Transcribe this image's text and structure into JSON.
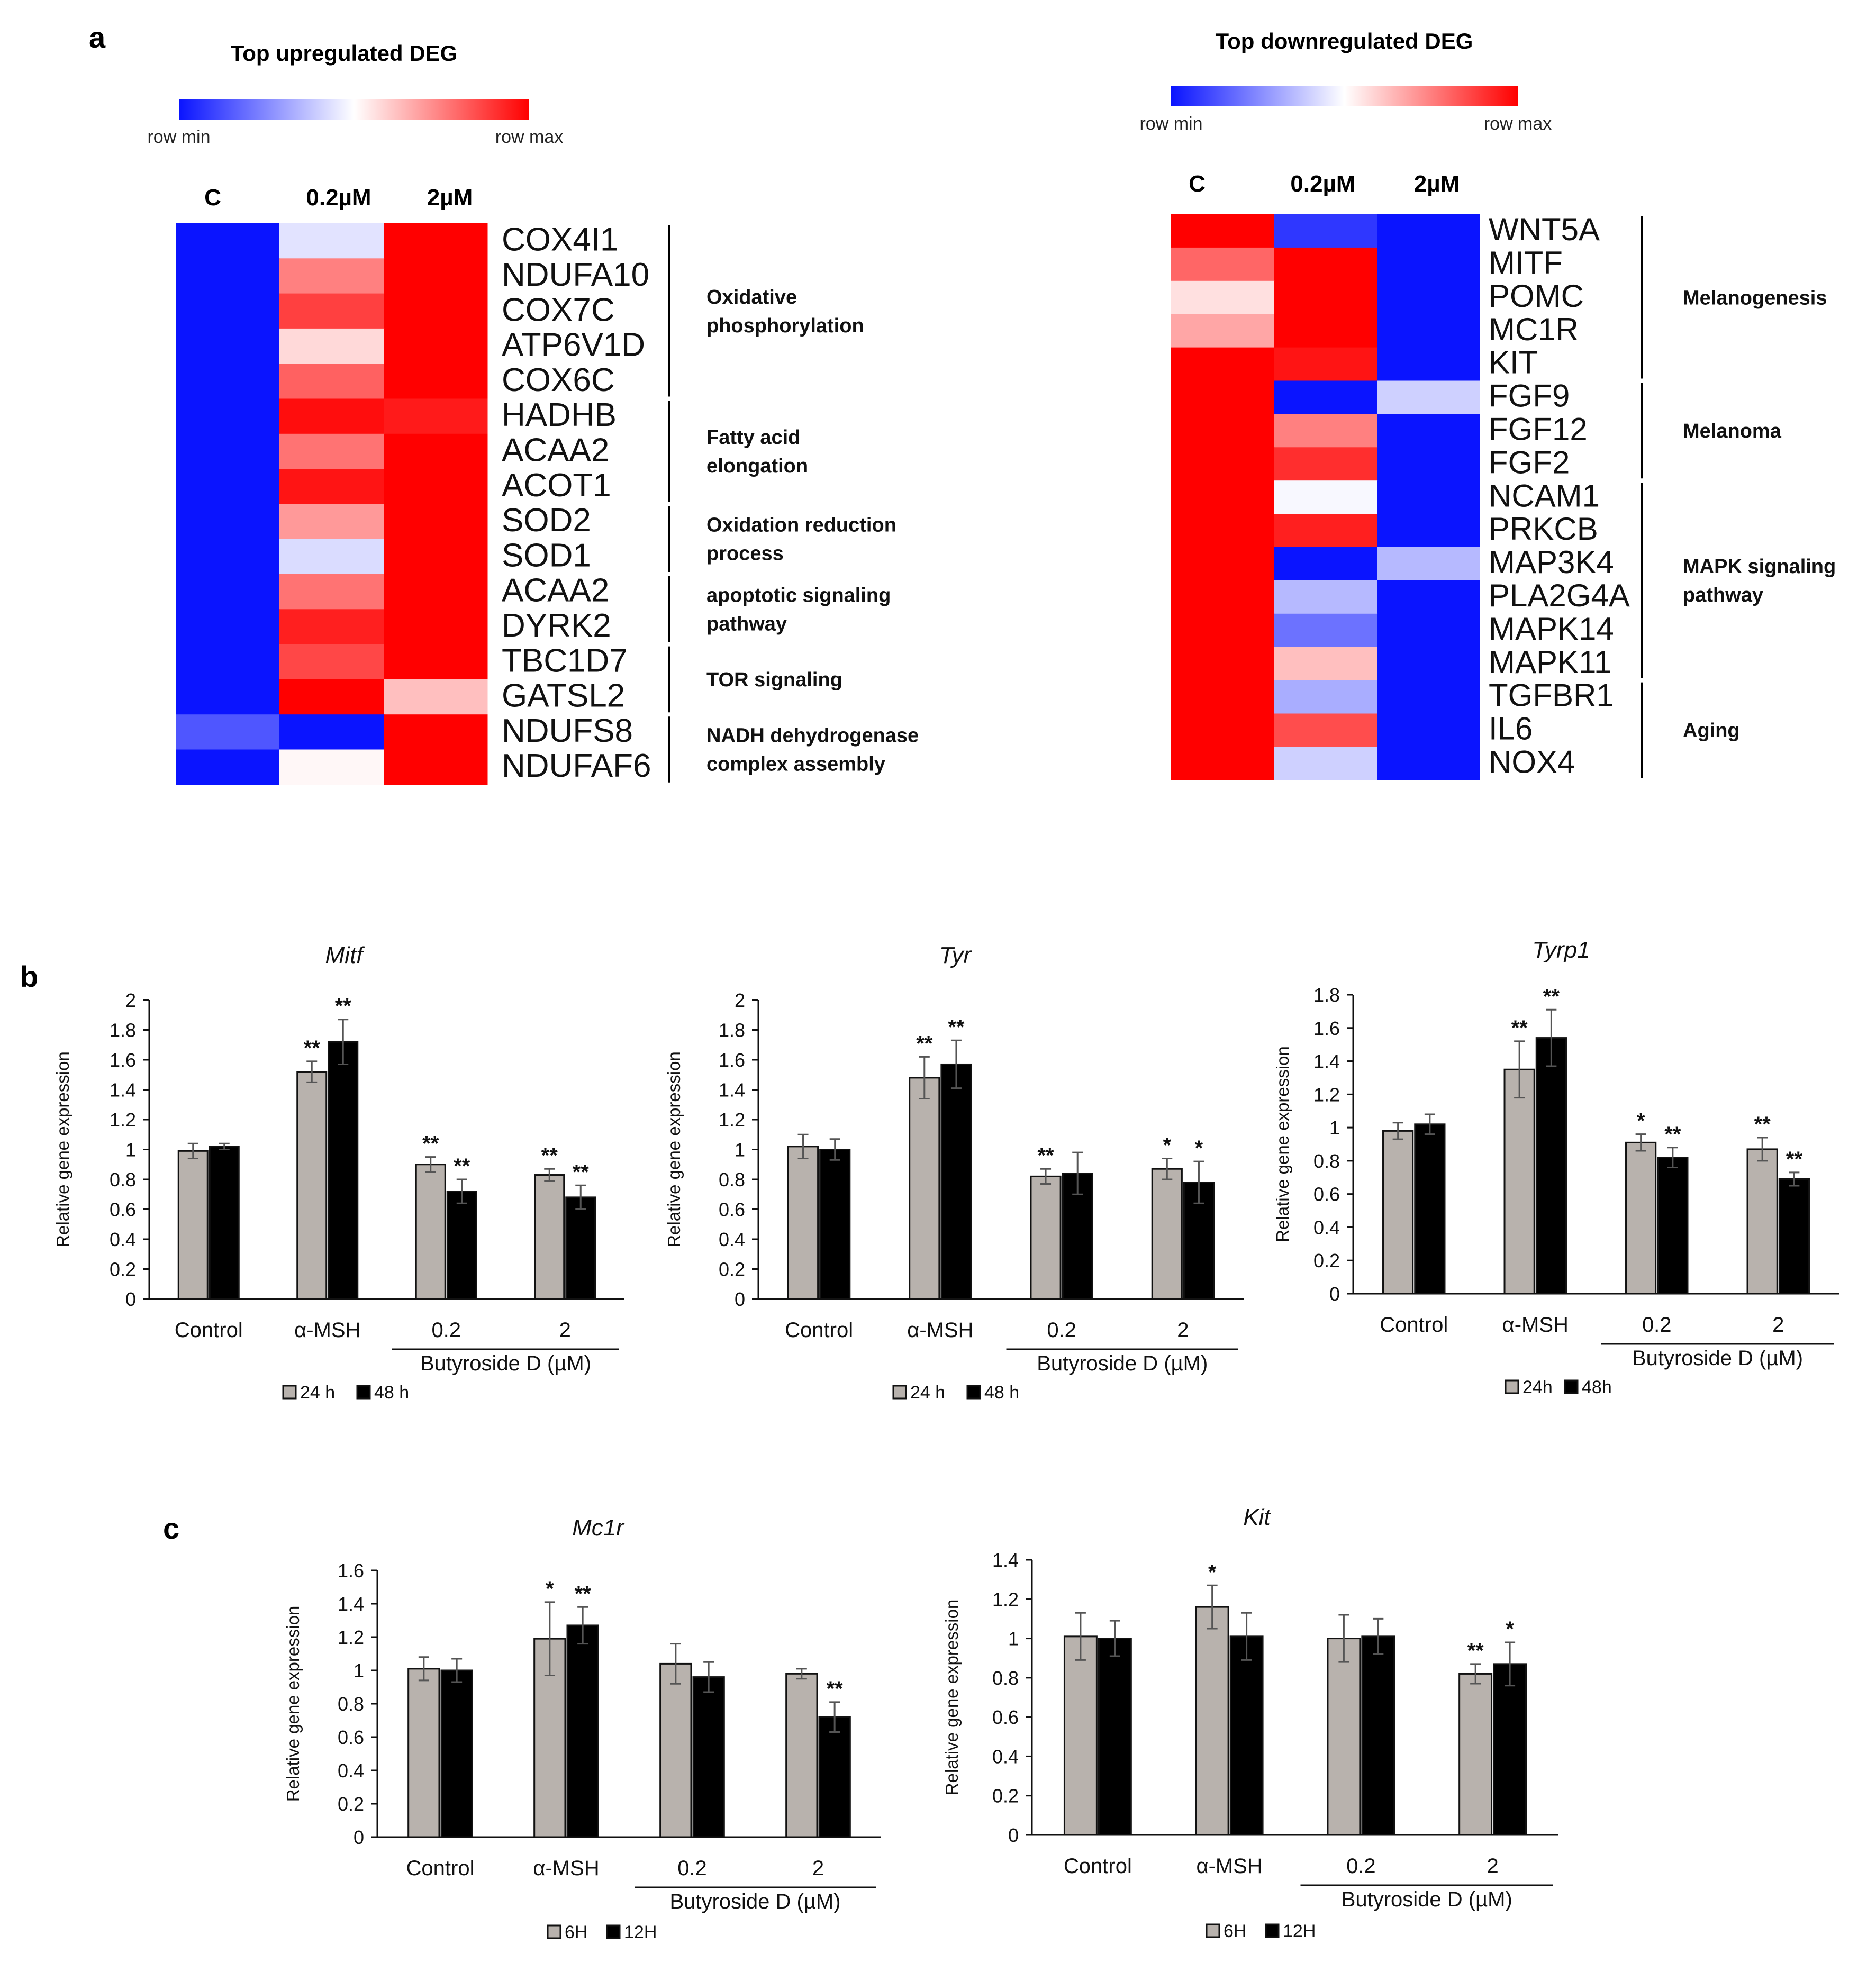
{
  "panel_labels": {
    "a": "a",
    "b": "b",
    "c": "c"
  },
  "colors": {
    "low": "#0a14ff",
    "mid": "#ffffff",
    "high": "#ff0000",
    "bar_light": "#b8b2ad",
    "bar_dark": "#000000"
  },
  "heatmaps": [
    {
      "title": "Top upregulated DEG",
      "scale_min": "row min",
      "scale_max": "row max",
      "columns": [
        "C",
        "0.2µM",
        "2µM"
      ],
      "genes": [
        "COX4I1",
        "NDUFA10",
        "COX7C",
        "ATP6V1D",
        "COX6C",
        "HADHB",
        "ACAA2",
        "ACOT1",
        "SOD2",
        "SOD1",
        "ACAA2",
        "DYRK2",
        "TBC1D7",
        "GATSL2",
        "NDUFS8",
        "NDUFAF6"
      ],
      "values": [
        [
          -1,
          -0.12,
          1
        ],
        [
          -1,
          0.5,
          1
        ],
        [
          -1,
          0.75,
          1
        ],
        [
          -1,
          0.15,
          1
        ],
        [
          -1,
          0.62,
          1
        ],
        [
          -1,
          0.95,
          0.9
        ],
        [
          -1,
          0.55,
          1
        ],
        [
          -1,
          0.92,
          1
        ],
        [
          -1,
          0.4,
          1
        ],
        [
          -1,
          -0.15,
          1
        ],
        [
          -1,
          0.55,
          1
        ],
        [
          -1,
          0.88,
          1
        ],
        [
          -1,
          0.72,
          1
        ],
        [
          -1,
          1,
          0.25
        ],
        [
          -0.72,
          -1,
          1
        ],
        [
          -1,
          0.03,
          1
        ]
      ],
      "groups": [
        {
          "lines": [
            "Oxidative",
            "phosphorylation"
          ],
          "start": 0,
          "end": 4
        },
        {
          "lines": [
            "Fatty acid",
            "elongation"
          ],
          "start": 5,
          "end": 7
        },
        {
          "lines": [
            "Oxidation reduction",
            "process"
          ],
          "start": 8,
          "end": 9
        },
        {
          "lines": [
            "apoptotic signaling",
            "pathway"
          ],
          "start": 10,
          "end": 11
        },
        {
          "lines": [
            "TOR signaling"
          ],
          "start": 12,
          "end": 13
        },
        {
          "lines": [
            "NADH dehydrogenase",
            "complex assembly"
          ],
          "start": 14,
          "end": 15
        }
      ]
    },
    {
      "title": "Top downregulated DEG",
      "scale_min": "row min",
      "scale_max": "row max",
      "columns": [
        "C",
        "0.2µM",
        "2µM"
      ],
      "genes": [
        "WNT5A",
        "MITF",
        "POMC",
        "MC1R",
        "KIT",
        "FGF9",
        "FGF12",
        "FGF2",
        "NCAM1",
        "PRKCB",
        "MAP3K4",
        "PLA2G4A",
        "MAPK14",
        "MAPK11",
        "TGFBR1",
        "IL6",
        "NOX4"
      ],
      "values": [
        [
          1,
          -0.85,
          -1
        ],
        [
          0.6,
          1,
          -1
        ],
        [
          0.12,
          1,
          -1
        ],
        [
          0.35,
          1,
          -1
        ],
        [
          1,
          0.92,
          -1
        ],
        [
          1,
          -1,
          -0.2
        ],
        [
          1,
          0.5,
          -1
        ],
        [
          1,
          0.82,
          -1
        ],
        [
          1,
          -0.03,
          -1
        ],
        [
          1,
          0.88,
          -1
        ],
        [
          1,
          -1,
          -0.3
        ],
        [
          1,
          -0.3,
          -1
        ],
        [
          1,
          -0.6,
          -1
        ],
        [
          1,
          0.25,
          -1
        ],
        [
          1,
          -0.35,
          -1
        ],
        [
          1,
          0.7,
          -1
        ],
        [
          1,
          -0.2,
          -1
        ]
      ],
      "groups": [
        {
          "lines": [
            "Melanogenesis"
          ],
          "start": 0,
          "end": 4
        },
        {
          "lines": [
            "Melanoma"
          ],
          "start": 5,
          "end": 7
        },
        {
          "lines": [
            "MAPK signaling",
            "pathway"
          ],
          "start": 8,
          "end": 13
        },
        {
          "lines": [
            "Aging"
          ],
          "start": 14,
          "end": 16
        }
      ]
    }
  ],
  "chart_data": [
    {
      "type": "bar",
      "title": "Mitf",
      "ylabel": "Relative gene expression",
      "ylim": [
        0,
        2
      ],
      "yticks": [
        "0",
        "0.2",
        "0.4",
        "0.6",
        "0.8",
        "1",
        "1.2",
        "1.4",
        "1.6",
        "1.8",
        "2"
      ],
      "categories": [
        "Control",
        "α-MSH",
        "0.2",
        "2"
      ],
      "group_label": "Butyroside D (µM)",
      "legend": [
        "24 h",
        "48 h"
      ],
      "series": [
        {
          "name": "24 h",
          "values": [
            0.99,
            1.52,
            0.9,
            0.83
          ],
          "errors": [
            0.05,
            0.07,
            0.05,
            0.04
          ],
          "significance": [
            "",
            "**",
            "**",
            "**"
          ]
        },
        {
          "name": "48 h",
          "values": [
            1.02,
            1.72,
            0.72,
            0.68
          ],
          "errors": [
            0.02,
            0.15,
            0.08,
            0.08
          ],
          "significance": [
            "",
            "**",
            "**",
            "**"
          ]
        }
      ]
    },
    {
      "type": "bar",
      "title": "Tyr",
      "ylabel": "Relative gene expression",
      "ylim": [
        0,
        2
      ],
      "yticks": [
        "0",
        "0.2",
        "0.4",
        "0.6",
        "0.8",
        "1",
        "1.2",
        "1.4",
        "1.6",
        "1.8",
        "2"
      ],
      "categories": [
        "Control",
        "α-MSH",
        "0.2",
        "2"
      ],
      "group_label": "Butyroside D (µM)",
      "legend": [
        "24 h",
        "48 h"
      ],
      "series": [
        {
          "name": "24 h",
          "values": [
            1.02,
            1.48,
            0.82,
            0.87
          ],
          "errors": [
            0.08,
            0.14,
            0.05,
            0.07
          ],
          "significance": [
            "",
            "**",
            "**",
            "*"
          ]
        },
        {
          "name": "48 h",
          "values": [
            1.0,
            1.57,
            0.84,
            0.78
          ],
          "errors": [
            0.07,
            0.16,
            0.14,
            0.14
          ],
          "significance": [
            "",
            "**",
            "",
            "*"
          ]
        }
      ]
    },
    {
      "type": "bar",
      "title": "Tyrp1",
      "ylabel": "Relative gene expression",
      "ylim": [
        0,
        1.8
      ],
      "yticks": [
        "0",
        "0.2",
        "0.4",
        "0.6",
        "0.8",
        "1",
        "1.2",
        "1.4",
        "1.6",
        "1.8"
      ],
      "categories": [
        "Control",
        "α-MSH",
        "0.2",
        "2"
      ],
      "group_label": "Butyroside D (µM)",
      "legend": [
        "24h",
        "48h"
      ],
      "series": [
        {
          "name": "24h",
          "values": [
            0.98,
            1.35,
            0.91,
            0.87
          ],
          "errors": [
            0.05,
            0.17,
            0.05,
            0.07
          ],
          "significance": [
            "",
            "**",
            "*",
            "**"
          ]
        },
        {
          "name": "48h",
          "values": [
            1.02,
            1.54,
            0.82,
            0.69
          ],
          "errors": [
            0.06,
            0.17,
            0.06,
            0.04
          ],
          "significance": [
            "",
            "**",
            "**",
            "**"
          ]
        }
      ]
    },
    {
      "type": "bar",
      "title": "Mc1r",
      "ylabel": "Relative gene expression",
      "ylim": [
        0,
        1.6
      ],
      "yticks": [
        "0",
        "0.2",
        "0.4",
        "0.6",
        "0.8",
        "1",
        "1.2",
        "1.4",
        "1.6"
      ],
      "categories": [
        "Control",
        "α-MSH",
        "0.2",
        "2"
      ],
      "group_label": "Butyroside D (µM)",
      "legend": [
        "6H",
        "12H"
      ],
      "series": [
        {
          "name": "6H",
          "values": [
            1.01,
            1.19,
            1.04,
            0.98
          ],
          "errors": [
            0.07,
            0.22,
            0.12,
            0.03
          ],
          "significance": [
            "",
            "*",
            "",
            ""
          ]
        },
        {
          "name": "12H",
          "values": [
            1.0,
            1.27,
            0.96,
            0.72
          ],
          "errors": [
            0.07,
            0.11,
            0.09,
            0.09
          ],
          "significance": [
            "",
            "**",
            "",
            "**"
          ]
        }
      ]
    },
    {
      "type": "bar",
      "title": "Kit",
      "ylabel": "Relative gene expression",
      "ylim": [
        0,
        1.4
      ],
      "yticks": [
        "0",
        "0.2",
        "0.4",
        "0.6",
        "0.8",
        "1",
        "1.2",
        "1.4"
      ],
      "categories": [
        "Control",
        "α-MSH",
        "0.2",
        "2"
      ],
      "group_label": "Butyroside D (µM)",
      "legend": [
        "6H",
        "12H"
      ],
      "series": [
        {
          "name": "6H",
          "values": [
            1.01,
            1.16,
            1.0,
            0.82
          ],
          "errors": [
            0.12,
            0.11,
            0.12,
            0.05
          ],
          "significance": [
            "",
            "*",
            "",
            "**"
          ]
        },
        {
          "name": "12H",
          "values": [
            1.0,
            1.01,
            1.01,
            0.87
          ],
          "errors": [
            0.09,
            0.12,
            0.09,
            0.11
          ],
          "significance": [
            "",
            "",
            "",
            "*"
          ]
        }
      ]
    }
  ]
}
